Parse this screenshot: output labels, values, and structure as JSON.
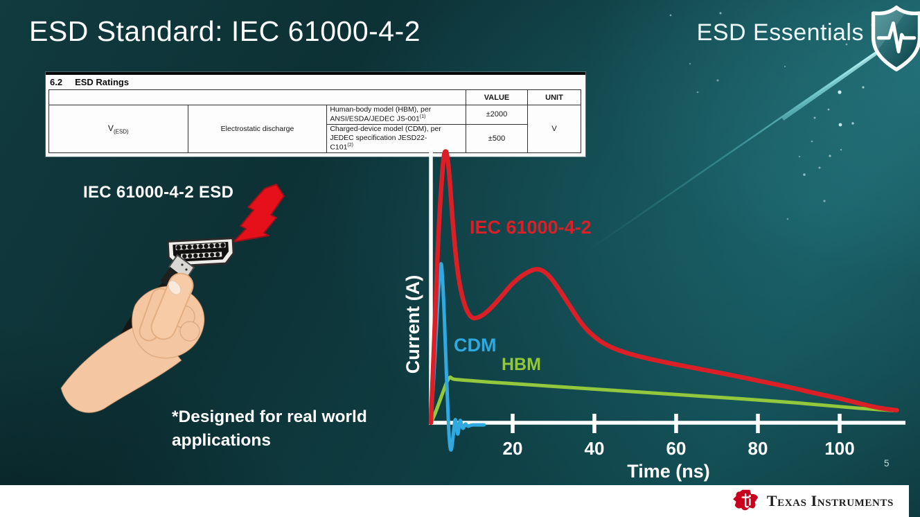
{
  "slide": {
    "title": "ESD Standard: IEC 61000-4-2",
    "brand": "ESD Essentials",
    "page_number": "5"
  },
  "ratings_table": {
    "section": "6.2",
    "section_title": "ESD Ratings",
    "value_header": "VALUE",
    "unit_header": "UNIT",
    "symbol": "V",
    "symbol_sub": "(ESD)",
    "row_label": "Electrostatic discharge",
    "hbm_desc": "Human-body model (HBM), per ANSI/ESDA/JEDEC JS-001",
    "hbm_sup": "(1)",
    "hbm_value": "±2000",
    "cdm_desc_line1": "Charged-device model (CDM), per JEDEC specification JESD22-",
    "cdm_desc_line2": "C101",
    "cdm_sup": "(2)",
    "cdm_value": "±500",
    "unit": "V"
  },
  "illustration": {
    "label": "IEC 61000-4-2 ESD",
    "note_line1": "*Designed for real world",
    "note_line2": "applications"
  },
  "footer": {
    "logo": "ti-bug",
    "wordmark": "Texas Instruments",
    "ti_red": "#c8001e"
  },
  "chart_data": {
    "type": "line",
    "xlabel": "Time (ns)",
    "ylabel": "Current (A)",
    "x_ticks": [
      20,
      40,
      60,
      80,
      100
    ],
    "xlim": [
      0,
      115
    ],
    "y_axis_note": "unlabeled relative current; IEC 61000-4-2 peak = 100",
    "grid": false,
    "legend_position": "inline-labels",
    "series": [
      {
        "name": "IEC 61000-4-2",
        "color": "#da2026",
        "points": [
          [
            0,
            0
          ],
          [
            0.8,
            28
          ],
          [
            1.8,
            70
          ],
          [
            2.9,
            95
          ],
          [
            3.3,
            99.5
          ],
          [
            3.6,
            100
          ],
          [
            3.9,
            99.5
          ],
          [
            4.5,
            92
          ],
          [
            5.4,
            72
          ],
          [
            6.6,
            54
          ],
          [
            8,
            44
          ],
          [
            9.7,
            38.5
          ],
          [
            11.5,
            38.5
          ],
          [
            14,
            41
          ],
          [
            17,
            46
          ],
          [
            20,
            51.5
          ],
          [
            23,
            55
          ],
          [
            26,
            57
          ],
          [
            28.5,
            55
          ],
          [
            31,
            50
          ],
          [
            34,
            43
          ],
          [
            37,
            36
          ],
          [
            40,
            31.5
          ],
          [
            43,
            28.5
          ],
          [
            47,
            26
          ],
          [
            52,
            24
          ],
          [
            58,
            22
          ],
          [
            65,
            20
          ],
          [
            72,
            18
          ],
          [
            80,
            15.5
          ],
          [
            88,
            13
          ],
          [
            95,
            10.5
          ],
          [
            100,
            9
          ],
          [
            105,
            7
          ],
          [
            110,
            5.3
          ],
          [
            114,
            4.6
          ]
        ]
      },
      {
        "name": "CDM",
        "color": "#2fa9e0",
        "points": [
          [
            0,
            0
          ],
          [
            0.6,
            14
          ],
          [
            1.3,
            34
          ],
          [
            2.0,
            52
          ],
          [
            2.3,
            57
          ],
          [
            2.5,
            59
          ],
          [
            2.7,
            57
          ],
          [
            3.1,
            46
          ],
          [
            3.6,
            26
          ],
          [
            4.1,
            6
          ],
          [
            4.5,
            -7
          ],
          [
            4.9,
            -11
          ],
          [
            5.3,
            -7
          ],
          [
            5.7,
            -1
          ],
          [
            6.0,
            2
          ],
          [
            6.3,
            -2
          ],
          [
            6.6,
            -5
          ],
          [
            6.9,
            -1
          ],
          [
            7.2,
            1.5
          ],
          [
            7.5,
            -1
          ],
          [
            7.9,
            -2.5
          ],
          [
            8.4,
            0
          ],
          [
            9.0,
            -1.5
          ],
          [
            9.8,
            -0.8
          ],
          [
            11,
            -0.8
          ],
          [
            13,
            -0.8
          ]
        ]
      },
      {
        "name": "HBM",
        "color": "#93c83d",
        "points": [
          [
            0,
            0
          ],
          [
            0.8,
            2.5
          ],
          [
            1.8,
            6.5
          ],
          [
            3.0,
            11.5
          ],
          [
            4.0,
            15.5
          ],
          [
            4.7,
            17
          ],
          [
            5.1,
            16.3
          ],
          [
            5.6,
            16
          ],
          [
            7,
            15.8
          ],
          [
            9,
            15.6
          ],
          [
            12,
            15.2
          ],
          [
            16,
            14.8
          ],
          [
            20,
            14.4
          ],
          [
            26,
            13.8
          ],
          [
            32,
            13.2
          ],
          [
            40,
            12.4
          ],
          [
            48,
            11.6
          ],
          [
            56,
            10.8
          ],
          [
            64,
            10
          ],
          [
            72,
            9.2
          ],
          [
            80,
            8.4
          ],
          [
            88,
            7.5
          ],
          [
            95,
            6.6
          ],
          [
            101,
            5.8
          ],
          [
            106,
            5.2
          ],
          [
            110,
            4.8
          ],
          [
            113,
            4.5
          ]
        ]
      }
    ]
  }
}
